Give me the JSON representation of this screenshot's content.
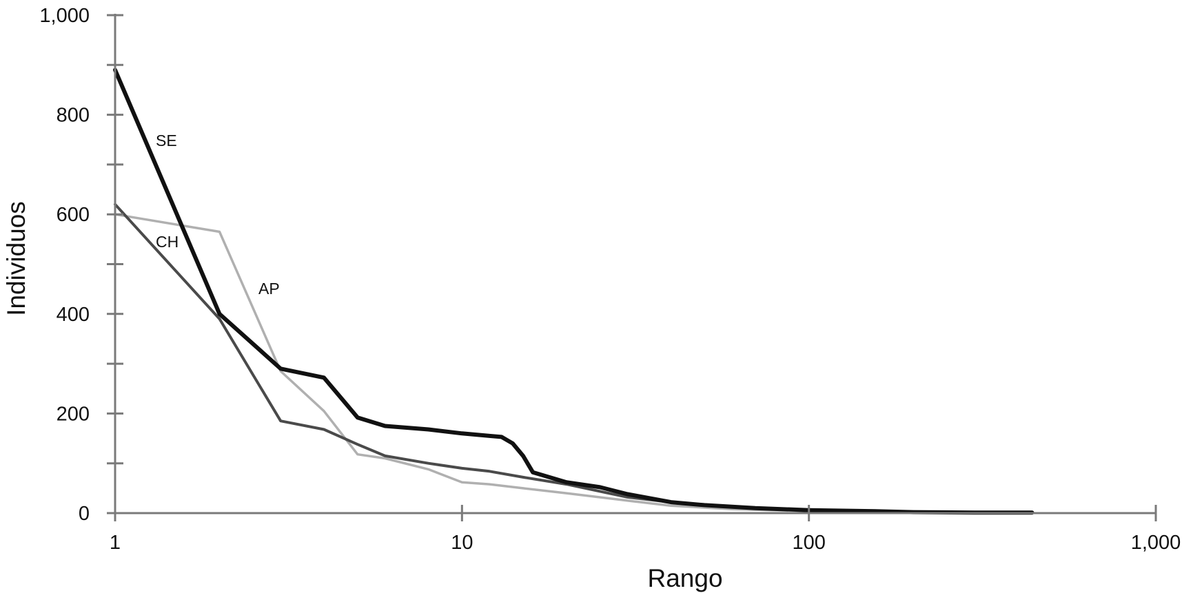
{
  "chart_data": {
    "type": "line",
    "x_scale": "log",
    "xlabel": "Rango",
    "ylabel": "Individuos",
    "xlim": [
      1,
      1000
    ],
    "ylim": [
      0,
      1000
    ],
    "x_ticks": [
      1,
      10,
      100,
      1000
    ],
    "x_tick_labels": [
      "1",
      "10",
      "100",
      "1,000"
    ],
    "y_ticks": [
      0,
      200,
      400,
      600,
      800,
      1000
    ],
    "y_tick_labels": [
      "0",
      "200",
      "400",
      "600",
      "800",
      "1,000"
    ],
    "grid": false,
    "legend": "none",
    "series": [
      {
        "name": "SE",
        "color": "#111111",
        "x": [
          1,
          2,
          3,
          4,
          5,
          6,
          8,
          10,
          12,
          13,
          14,
          15,
          16,
          20,
          25,
          30,
          40,
          50,
          70,
          100,
          150,
          200,
          300,
          440
        ],
        "y": [
          890,
          400,
          290,
          272,
          192,
          175,
          168,
          160,
          155,
          153,
          140,
          115,
          82,
          62,
          52,
          38,
          22,
          16,
          10,
          6,
          4,
          2,
          1,
          1
        ]
      },
      {
        "name": "CH",
        "color": "#4a4a4a",
        "x": [
          1,
          2,
          3,
          4,
          5,
          6,
          8,
          10,
          12,
          15,
          20,
          30,
          40,
          60,
          100,
          150
        ],
        "y": [
          620,
          390,
          185,
          168,
          138,
          115,
          100,
          90,
          84,
          72,
          58,
          32,
          22,
          12,
          6,
          3
        ]
      },
      {
        "name": "AP",
        "color": "#b0b0b0",
        "x": [
          1,
          2,
          3,
          4,
          5,
          6,
          8,
          10,
          12,
          15,
          20,
          30,
          40,
          60,
          100
        ],
        "y": [
          600,
          565,
          285,
          205,
          118,
          110,
          88,
          62,
          58,
          50,
          40,
          25,
          15,
          8,
          4
        ]
      }
    ]
  }
}
